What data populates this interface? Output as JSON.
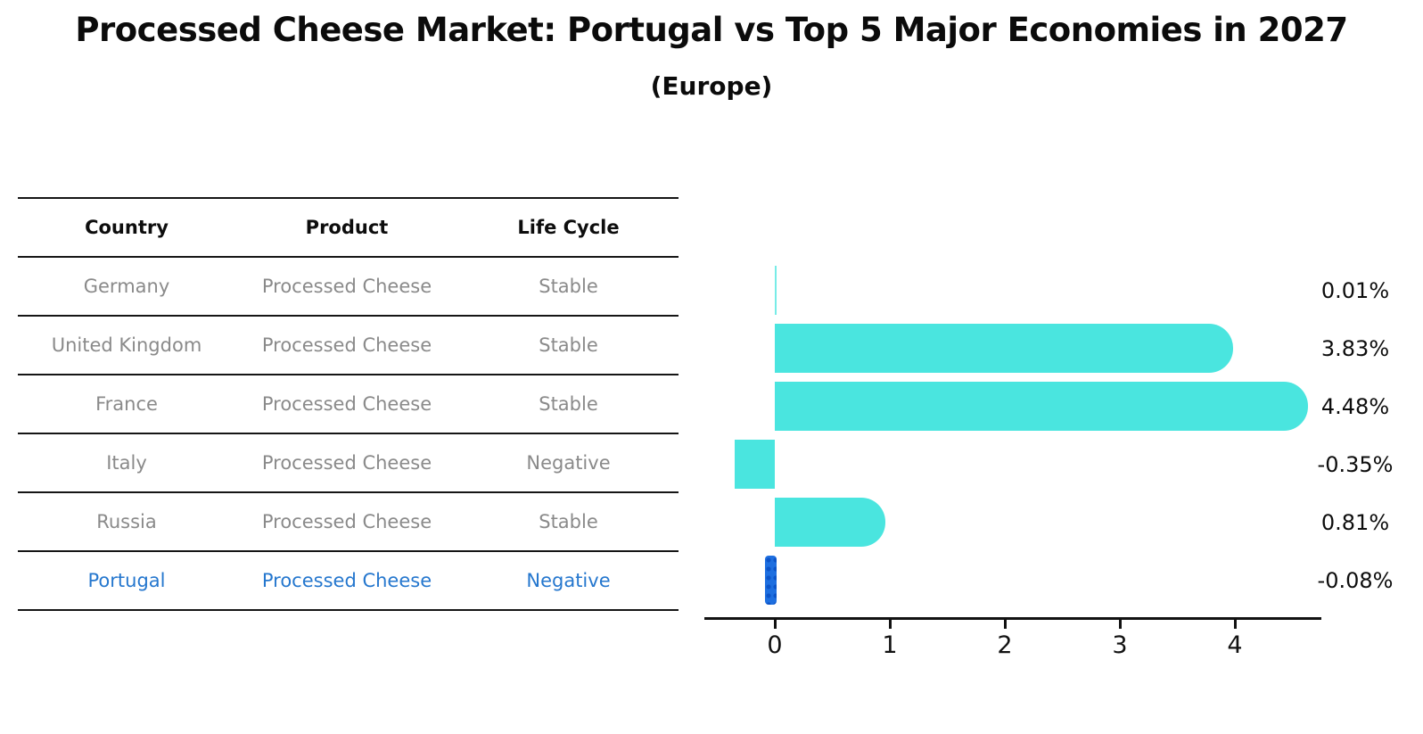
{
  "header": {
    "title": "Processed Cheese Market: Portugal vs Top 5 Major Economies in 2027",
    "subtitle": "(Europe)"
  },
  "table": {
    "headers": [
      "Country",
      "Product",
      "Life Cycle"
    ],
    "rows": [
      {
        "country": "Germany",
        "product": "Processed Cheese",
        "life_cycle": "Stable",
        "highlight": false
      },
      {
        "country": "United Kingdom",
        "product": "Processed Cheese",
        "life_cycle": "Stable",
        "highlight": false
      },
      {
        "country": "France",
        "product": "Processed Cheese",
        "life_cycle": "Stable",
        "highlight": false
      },
      {
        "country": "Italy",
        "product": "Processed Cheese",
        "life_cycle": "Negative",
        "highlight": false
      },
      {
        "country": "Russia",
        "product": "Processed Cheese",
        "life_cycle": "Stable",
        "highlight": false
      },
      {
        "country": "Portugal",
        "product": "Processed Cheese",
        "life_cycle": "Negative",
        "highlight": true
      }
    ]
  },
  "chart_data": {
    "type": "bar",
    "orientation": "horizontal",
    "categories": [
      "Germany",
      "United Kingdom",
      "France",
      "Italy",
      "Russia",
      "Portugal"
    ],
    "values": [
      0.01,
      3.83,
      4.48,
      -0.35,
      0.81,
      -0.08
    ],
    "value_labels": [
      "0.01%",
      "3.83%",
      "4.48%",
      "-0.35%",
      "0.81%",
      "-0.08%"
    ],
    "xticks": [
      "0",
      "1",
      "2",
      "3",
      "4"
    ],
    "xlim": [
      -0.62,
      4.75
    ],
    "grid": false,
    "legend": "none",
    "bar_color": "#4ae5df",
    "highlight_index": 5,
    "highlight_bar_color": "#1e6fe0",
    "highlight_text_color": "#2577ce",
    "axis_color": "#121212"
  }
}
